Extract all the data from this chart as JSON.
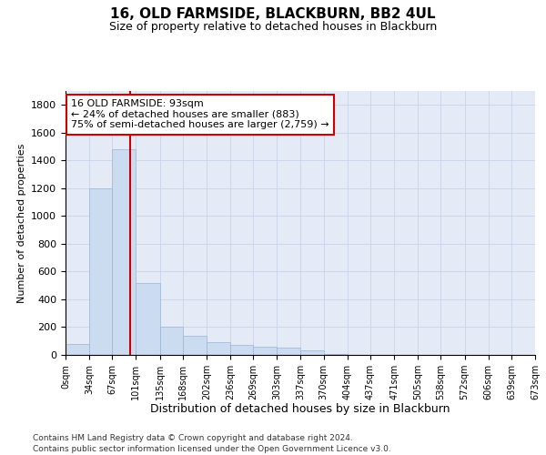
{
  "title": "16, OLD FARMSIDE, BLACKBURN, BB2 4UL",
  "subtitle": "Size of property relative to detached houses in Blackburn",
  "xlabel": "Distribution of detached houses by size in Blackburn",
  "ylabel": "Number of detached properties",
  "footnote1": "Contains HM Land Registry data © Crown copyright and database right 2024.",
  "footnote2": "Contains public sector information licensed under the Open Government Licence v3.0.",
  "annotation_line1": "16 OLD FARMSIDE: 93sqm",
  "annotation_line2": "← 24% of detached houses are smaller (883)",
  "annotation_line3": "75% of semi-detached houses are larger (2,759) →",
  "property_size": 93,
  "bin_edges": [
    0,
    34,
    67,
    101,
    135,
    168,
    202,
    236,
    269,
    303,
    337,
    370,
    404,
    437,
    471,
    505,
    538,
    572,
    606,
    639,
    673
  ],
  "bar_heights": [
    80,
    1200,
    1480,
    520,
    200,
    140,
    90,
    75,
    60,
    50,
    30,
    5,
    0,
    0,
    0,
    0,
    0,
    0,
    0,
    0
  ],
  "bar_color": "#ccdcf0",
  "bar_edge_color": "#9ab4d4",
  "vline_color": "#cc0000",
  "vline_x": 93,
  "annotation_box_color": "#cc0000",
  "ylim": [
    0,
    1900
  ],
  "yticks": [
    0,
    200,
    400,
    600,
    800,
    1000,
    1200,
    1400,
    1600,
    1800
  ],
  "grid_color": "#c8d4e8",
  "background_color": "#e4eaf6"
}
